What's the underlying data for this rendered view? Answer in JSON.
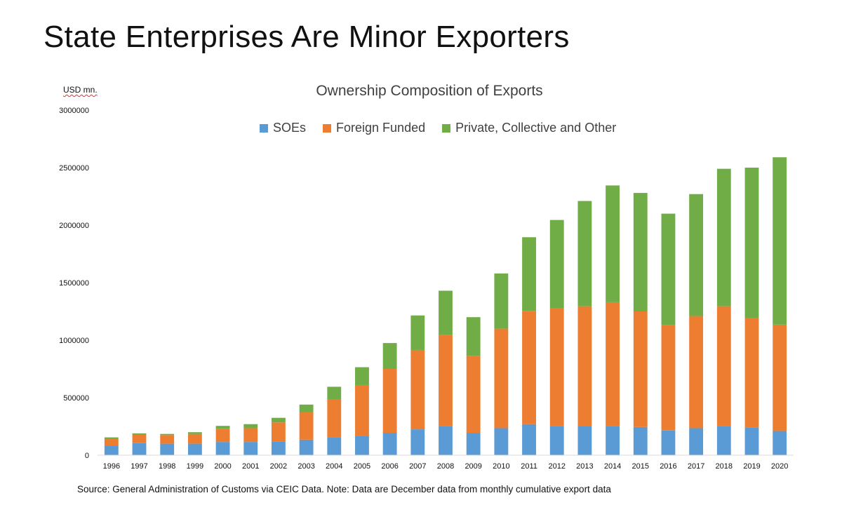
{
  "slide": {
    "title": "State Enterprises Are Minor Exporters",
    "unit_label": "USD mn.",
    "source_note": "Source: General Administration of Customs via CEIC Data.  Note: Data are December data from monthly cumulative export data"
  },
  "colors": {
    "soes": "#5b9bd5",
    "foreign": "#ed7d31",
    "private": "#70ad47",
    "axis": "#d9d9d9",
    "text": "#404040"
  },
  "chart_data": {
    "type": "bar",
    "stacked": true,
    "title": "Ownership Composition of Exports",
    "ylabel": "USD mn.",
    "xlabel": "",
    "ylim": [
      0,
      3000000
    ],
    "yticks": [
      0,
      500000,
      1000000,
      1500000,
      2000000,
      2500000,
      3000000
    ],
    "grid": false,
    "legend_position": "top-center",
    "categories": [
      "1996",
      "1997",
      "1998",
      "1999",
      "2000",
      "2001",
      "2002",
      "2003",
      "2004",
      "2005",
      "2006",
      "2007",
      "2008",
      "2009",
      "2010",
      "2011",
      "2012",
      "2013",
      "2014",
      "2015",
      "2016",
      "2017",
      "2018",
      "2019",
      "2020"
    ],
    "series": [
      {
        "name": "SOEs",
        "color": "#5b9bd5",
        "values": [
          85000,
          105000,
          100000,
          100000,
          115000,
          115000,
          120000,
          135000,
          155000,
          170000,
          195000,
          225000,
          255000,
          195000,
          235000,
          270000,
          255000,
          250000,
          255000,
          245000,
          215000,
          235000,
          255000,
          240000,
          210000
        ]
      },
      {
        "name": "Foreign Funded",
        "color": "#ed7d31",
        "values": [
          55000,
          75000,
          75000,
          85000,
          115000,
          120000,
          165000,
          240000,
          330000,
          440000,
          555000,
          690000,
          790000,
          670000,
          865000,
          985000,
          1020000,
          1045000,
          1075000,
          1005000,
          915000,
          975000,
          1040000,
          955000,
          925000
        ]
      },
      {
        "name": "Private, Collective and Other",
        "color": "#70ad47",
        "values": [
          15000,
          10000,
          10000,
          15000,
          25000,
          35000,
          40000,
          65000,
          110000,
          155000,
          225000,
          300000,
          385000,
          335000,
          480000,
          640000,
          770000,
          915000,
          1015000,
          1030000,
          970000,
          1060000,
          1195000,
          1305000,
          1455000
        ]
      }
    ]
  }
}
